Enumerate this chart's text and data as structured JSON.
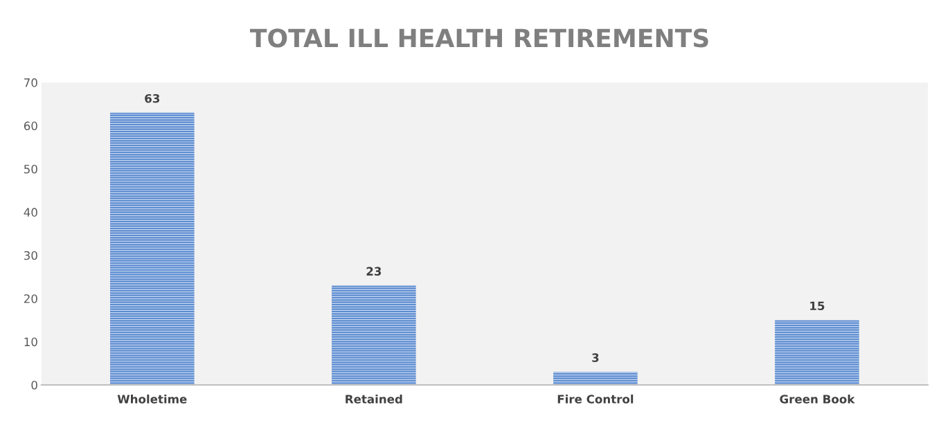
{
  "chart_data": {
    "type": "bar",
    "title": "TOTAL ILL HEALTH RETIREMENTS",
    "categories": [
      "Wholetime",
      "Retained",
      "Fire Control",
      "Green Book"
    ],
    "values": [
      63,
      23,
      3,
      15
    ],
    "color": "#5b8bd0",
    "ylim": [
      0,
      70
    ],
    "yticks": [
      0,
      10,
      20,
      30,
      40,
      50,
      60,
      70
    ],
    "grid": false,
    "data_labels": true
  }
}
